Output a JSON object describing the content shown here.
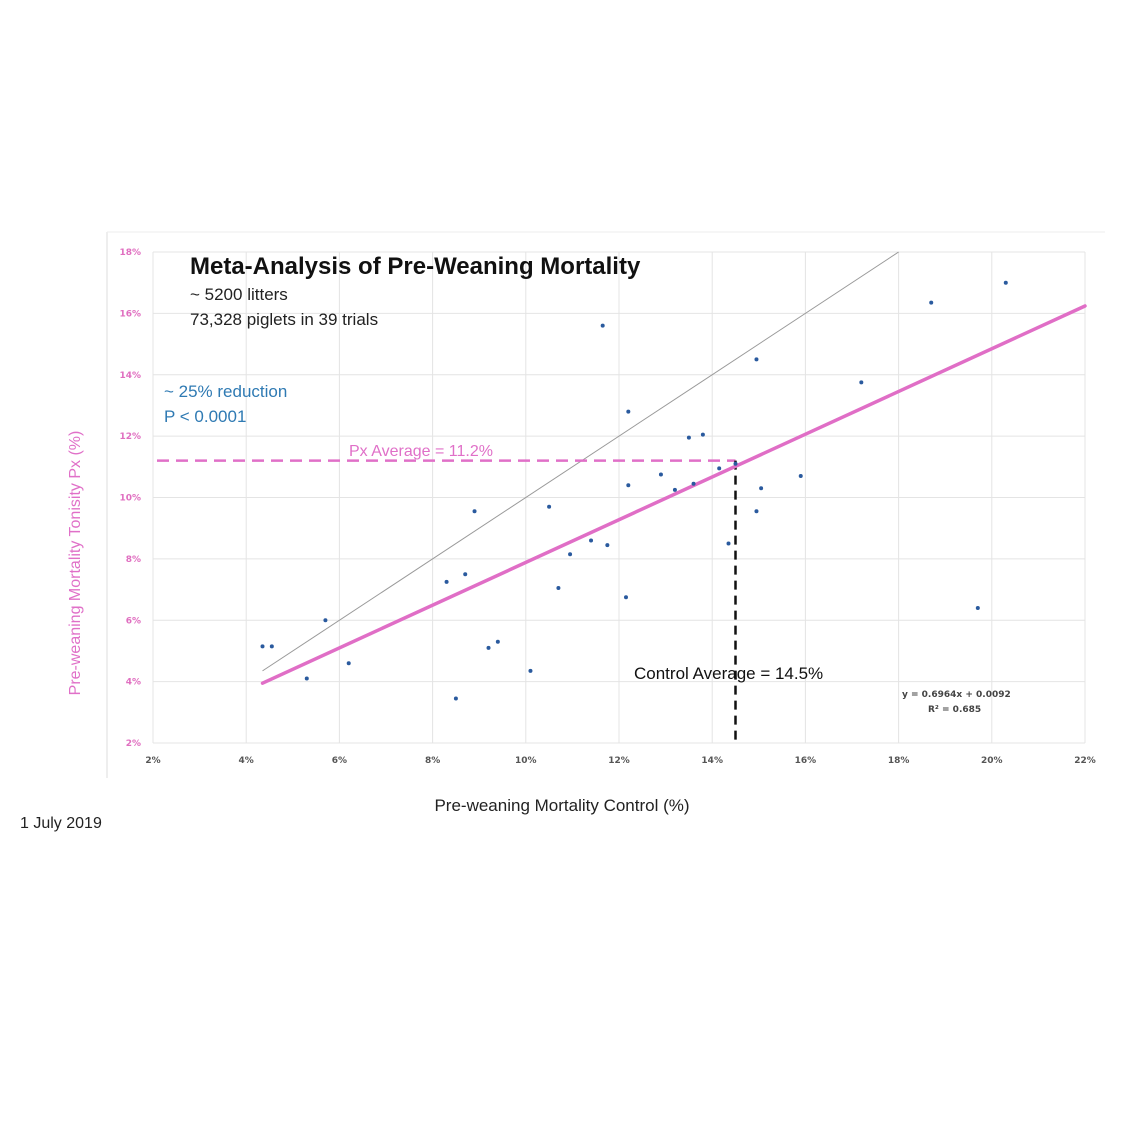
{
  "page": {
    "date": "1 July 2019"
  },
  "chart_data": {
    "type": "scatter",
    "title": "Meta-Analysis of Pre-Weaning Mortality",
    "subtitle_lines": [
      "~ 5200 litters",
      "73,328 piglets in 39 trials"
    ],
    "stats_lines": [
      "~ 25% reduction",
      "P < 0.0001"
    ],
    "xlabel": "Pre-weaning Mortality Control (%)",
    "ylabel": "Pre-weaning Mortality Tonisity Px (%)",
    "xlim": [
      2,
      22
    ],
    "ylim": [
      2,
      18
    ],
    "x_ticks": [
      2,
      4,
      6,
      8,
      10,
      12,
      14,
      16,
      18,
      20,
      22
    ],
    "y_ticks": [
      2,
      4,
      6,
      8,
      10,
      12,
      14,
      16,
      18
    ],
    "x_tick_labels": [
      "2%",
      "4%",
      "6%",
      "8%",
      "10%",
      "12%",
      "14%",
      "16%",
      "18%",
      "20%",
      "22%"
    ],
    "y_tick_labels": [
      "2%",
      "4%",
      "6%",
      "8%",
      "10%",
      "12%",
      "14%",
      "16%",
      "18%"
    ],
    "grid": true,
    "points": [
      {
        "x": 4.35,
        "y": 5.15
      },
      {
        "x": 4.55,
        "y": 5.15
      },
      {
        "x": 5.3,
        "y": 4.1
      },
      {
        "x": 5.7,
        "y": 6.0
      },
      {
        "x": 6.2,
        "y": 4.6
      },
      {
        "x": 8.3,
        "y": 7.25
      },
      {
        "x": 8.5,
        "y": 3.45
      },
      {
        "x": 8.7,
        "y": 7.5
      },
      {
        "x": 8.9,
        "y": 9.55
      },
      {
        "x": 9.2,
        "y": 5.1
      },
      {
        "x": 9.4,
        "y": 5.3
      },
      {
        "x": 10.1,
        "y": 4.35
      },
      {
        "x": 10.5,
        "y": 9.7
      },
      {
        "x": 10.7,
        "y": 7.05
      },
      {
        "x": 10.95,
        "y": 8.15
      },
      {
        "x": 11.4,
        "y": 8.6
      },
      {
        "x": 11.65,
        "y": 15.6
      },
      {
        "x": 11.75,
        "y": 8.45
      },
      {
        "x": 12.15,
        "y": 6.75
      },
      {
        "x": 12.2,
        "y": 10.4
      },
      {
        "x": 12.2,
        "y": 12.8
      },
      {
        "x": 12.9,
        "y": 10.75
      },
      {
        "x": 13.2,
        "y": 10.25
      },
      {
        "x": 13.5,
        "y": 11.95
      },
      {
        "x": 13.6,
        "y": 10.45
      },
      {
        "x": 13.8,
        "y": 12.05
      },
      {
        "x": 14.15,
        "y": 10.95
      },
      {
        "x": 14.35,
        "y": 8.5
      },
      {
        "x": 14.5,
        "y": 11.1
      },
      {
        "x": 14.95,
        "y": 9.55
      },
      {
        "x": 14.95,
        "y": 14.5
      },
      {
        "x": 15.05,
        "y": 10.3
      },
      {
        "x": 15.9,
        "y": 10.7
      },
      {
        "x": 17.2,
        "y": 13.75
      },
      {
        "x": 18.7,
        "y": 16.35
      },
      {
        "x": 19.7,
        "y": 6.4
      },
      {
        "x": 20.3,
        "y": 17.0
      }
    ],
    "trendline": {
      "equation": "y = 0.6964x + 0.0092",
      "r2": "R² = 0.685",
      "slope": 0.6964,
      "intercept_pct": 0.92,
      "x_range": [
        4.35,
        22
      ],
      "color": "#e06ec6"
    },
    "reference_line": {
      "x_range": [
        4.35,
        18
      ],
      "y_range": [
        4.35,
        18
      ],
      "color": "#999999"
    },
    "px_average": {
      "label": "Px Average = 11.2%",
      "value": 11.2,
      "color": "#e070c8"
    },
    "control_average": {
      "label": "Control Average = 14.5%",
      "value": 14.5,
      "color": "#111111"
    },
    "point_color": "#2a5a9e"
  }
}
